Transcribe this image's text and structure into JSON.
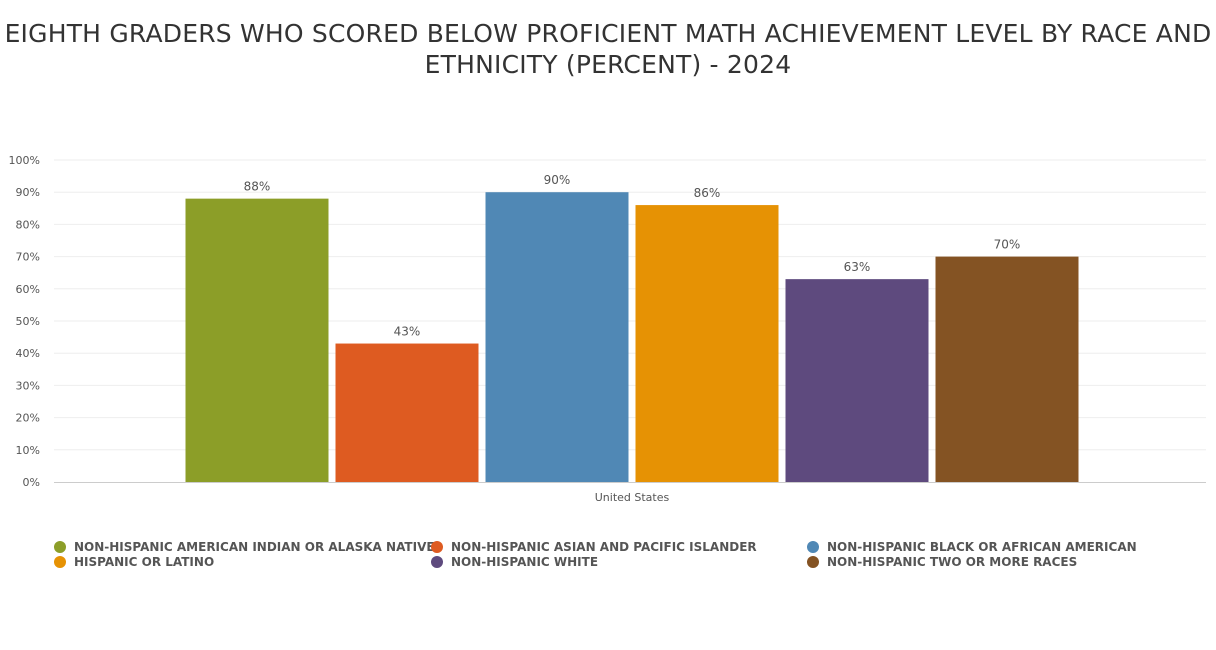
{
  "chart_data": {
    "type": "bar",
    "title": "EIGHTH GRADERS WHO SCORED BELOW PROFICIENT MATH ACHIEVEMENT LEVEL BY RACE AND ETHNICITY (PERCENT) - 2024",
    "categories": [
      "United States"
    ],
    "ylim": [
      0,
      100
    ],
    "yticks": [
      0,
      10,
      20,
      30,
      40,
      50,
      60,
      70,
      80,
      90,
      100
    ],
    "ytick_suffix": "%",
    "grid": true,
    "legend_position": "bottom",
    "series": [
      {
        "name": "NON-HISPANIC AMERICAN INDIAN OR ALASKA NATIVE",
        "values": [
          88
        ],
        "label": "88%",
        "color": "#8c9e28"
      },
      {
        "name": "NON-HISPANIC ASIAN AND PACIFIC ISLANDER",
        "values": [
          43
        ],
        "label": "43%",
        "color": "#de5b21"
      },
      {
        "name": "NON-HISPANIC BLACK OR AFRICAN AMERICAN",
        "values": [
          90
        ],
        "label": "90%",
        "color": "#5088b5"
      },
      {
        "name": "HISPANIC OR LATINO",
        "values": [
          86
        ],
        "label": "86%",
        "color": "#e69204"
      },
      {
        "name": "NON-HISPANIC WHITE",
        "values": [
          63
        ],
        "label": "63%",
        "color": "#5e4a7e"
      },
      {
        "name": "NON-HISPANIC TWO OR MORE RACES",
        "values": [
          70
        ],
        "label": "70%",
        "color": "#845323"
      }
    ]
  }
}
